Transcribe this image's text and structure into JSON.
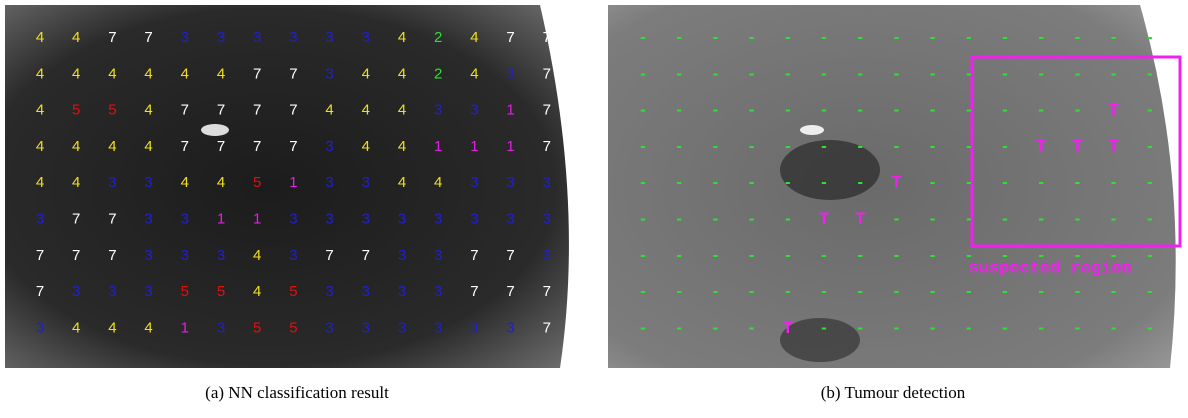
{
  "left": {
    "caption": "(a) NN classification result",
    "colors": {
      "1": "#e020e0",
      "2": "#30e030",
      "3": "#2020d0",
      "4": "#f0e020",
      "5": "#e01010",
      "7": "#ffffff"
    },
    "rows": [
      [
        4,
        4,
        7,
        7,
        3,
        3,
        3,
        3,
        3,
        3,
        4,
        2,
        4,
        7,
        7
      ],
      [
        4,
        4,
        4,
        4,
        4,
        4,
        7,
        7,
        3,
        4,
        4,
        2,
        4,
        3,
        7
      ],
      [
        4,
        5,
        5,
        4,
        7,
        7,
        7,
        7,
        4,
        4,
        4,
        3,
        3,
        1,
        7
      ],
      [
        4,
        4,
        4,
        4,
        7,
        7,
        7,
        7,
        3,
        4,
        4,
        1,
        1,
        1,
        7
      ],
      [
        4,
        4,
        3,
        3,
        4,
        4,
        5,
        1,
        3,
        3,
        4,
        4,
        3,
        3,
        3
      ],
      [
        3,
        7,
        7,
        3,
        3,
        1,
        1,
        3,
        3,
        3,
        3,
        3,
        3,
        3,
        3
      ],
      [
        7,
        7,
        7,
        3,
        3,
        3,
        4,
        3,
        7,
        7,
        3,
        3,
        7,
        7,
        3
      ],
      [
        7,
        3,
        3,
        3,
        5,
        5,
        4,
        5,
        3,
        3,
        3,
        3,
        7,
        7,
        7
      ],
      [
        3,
        4,
        4,
        4,
        1,
        3,
        5,
        5,
        3,
        3,
        3,
        3,
        3,
        3,
        7
      ]
    ]
  },
  "right": {
    "caption": "(b) Tumour detection",
    "region_label": "suspected region",
    "colors": {
      "-": "#30e030",
      "T": "#f020f0"
    },
    "rows": [
      [
        "-",
        "-",
        "-",
        "-",
        "-",
        "-",
        "-",
        "-",
        "-",
        "-",
        "-",
        "-",
        "-",
        "-",
        "-"
      ],
      [
        "-",
        "-",
        "-",
        "-",
        "-",
        "-",
        "-",
        "-",
        "-",
        "-",
        "-",
        "-",
        "-",
        "-",
        "-"
      ],
      [
        "-",
        "-",
        "-",
        "-",
        "-",
        "-",
        "-",
        "-",
        "-",
        "-",
        "-",
        "-",
        "-",
        "T",
        "-"
      ],
      [
        "-",
        "-",
        "-",
        "-",
        "-",
        "-",
        "-",
        "-",
        "-",
        "-",
        "-",
        "T",
        "T",
        "T",
        "-"
      ],
      [
        "-",
        "-",
        "-",
        "-",
        "-",
        "-",
        "-",
        "T",
        "-",
        "-",
        "-",
        "-",
        "-",
        "-",
        "-"
      ],
      [
        "-",
        "-",
        "-",
        "-",
        "-",
        "T",
        "T",
        "-",
        "-",
        "-",
        "-",
        "-",
        "-",
        "-",
        "-"
      ],
      [
        "-",
        "-",
        "-",
        "-",
        "-",
        "-",
        "-",
        "-",
        "-",
        "-",
        "-",
        "-",
        "-",
        "-",
        "-"
      ],
      [
        "-",
        "-",
        "-",
        "-",
        "-",
        "-",
        "-",
        "-",
        "-",
        "-",
        "-",
        "-",
        "-",
        "-",
        "-"
      ],
      [
        "-",
        "-",
        "-",
        "-",
        "T",
        "-",
        "-",
        "-",
        "-",
        "-",
        "-",
        "-",
        "-",
        "-",
        "-"
      ]
    ]
  }
}
